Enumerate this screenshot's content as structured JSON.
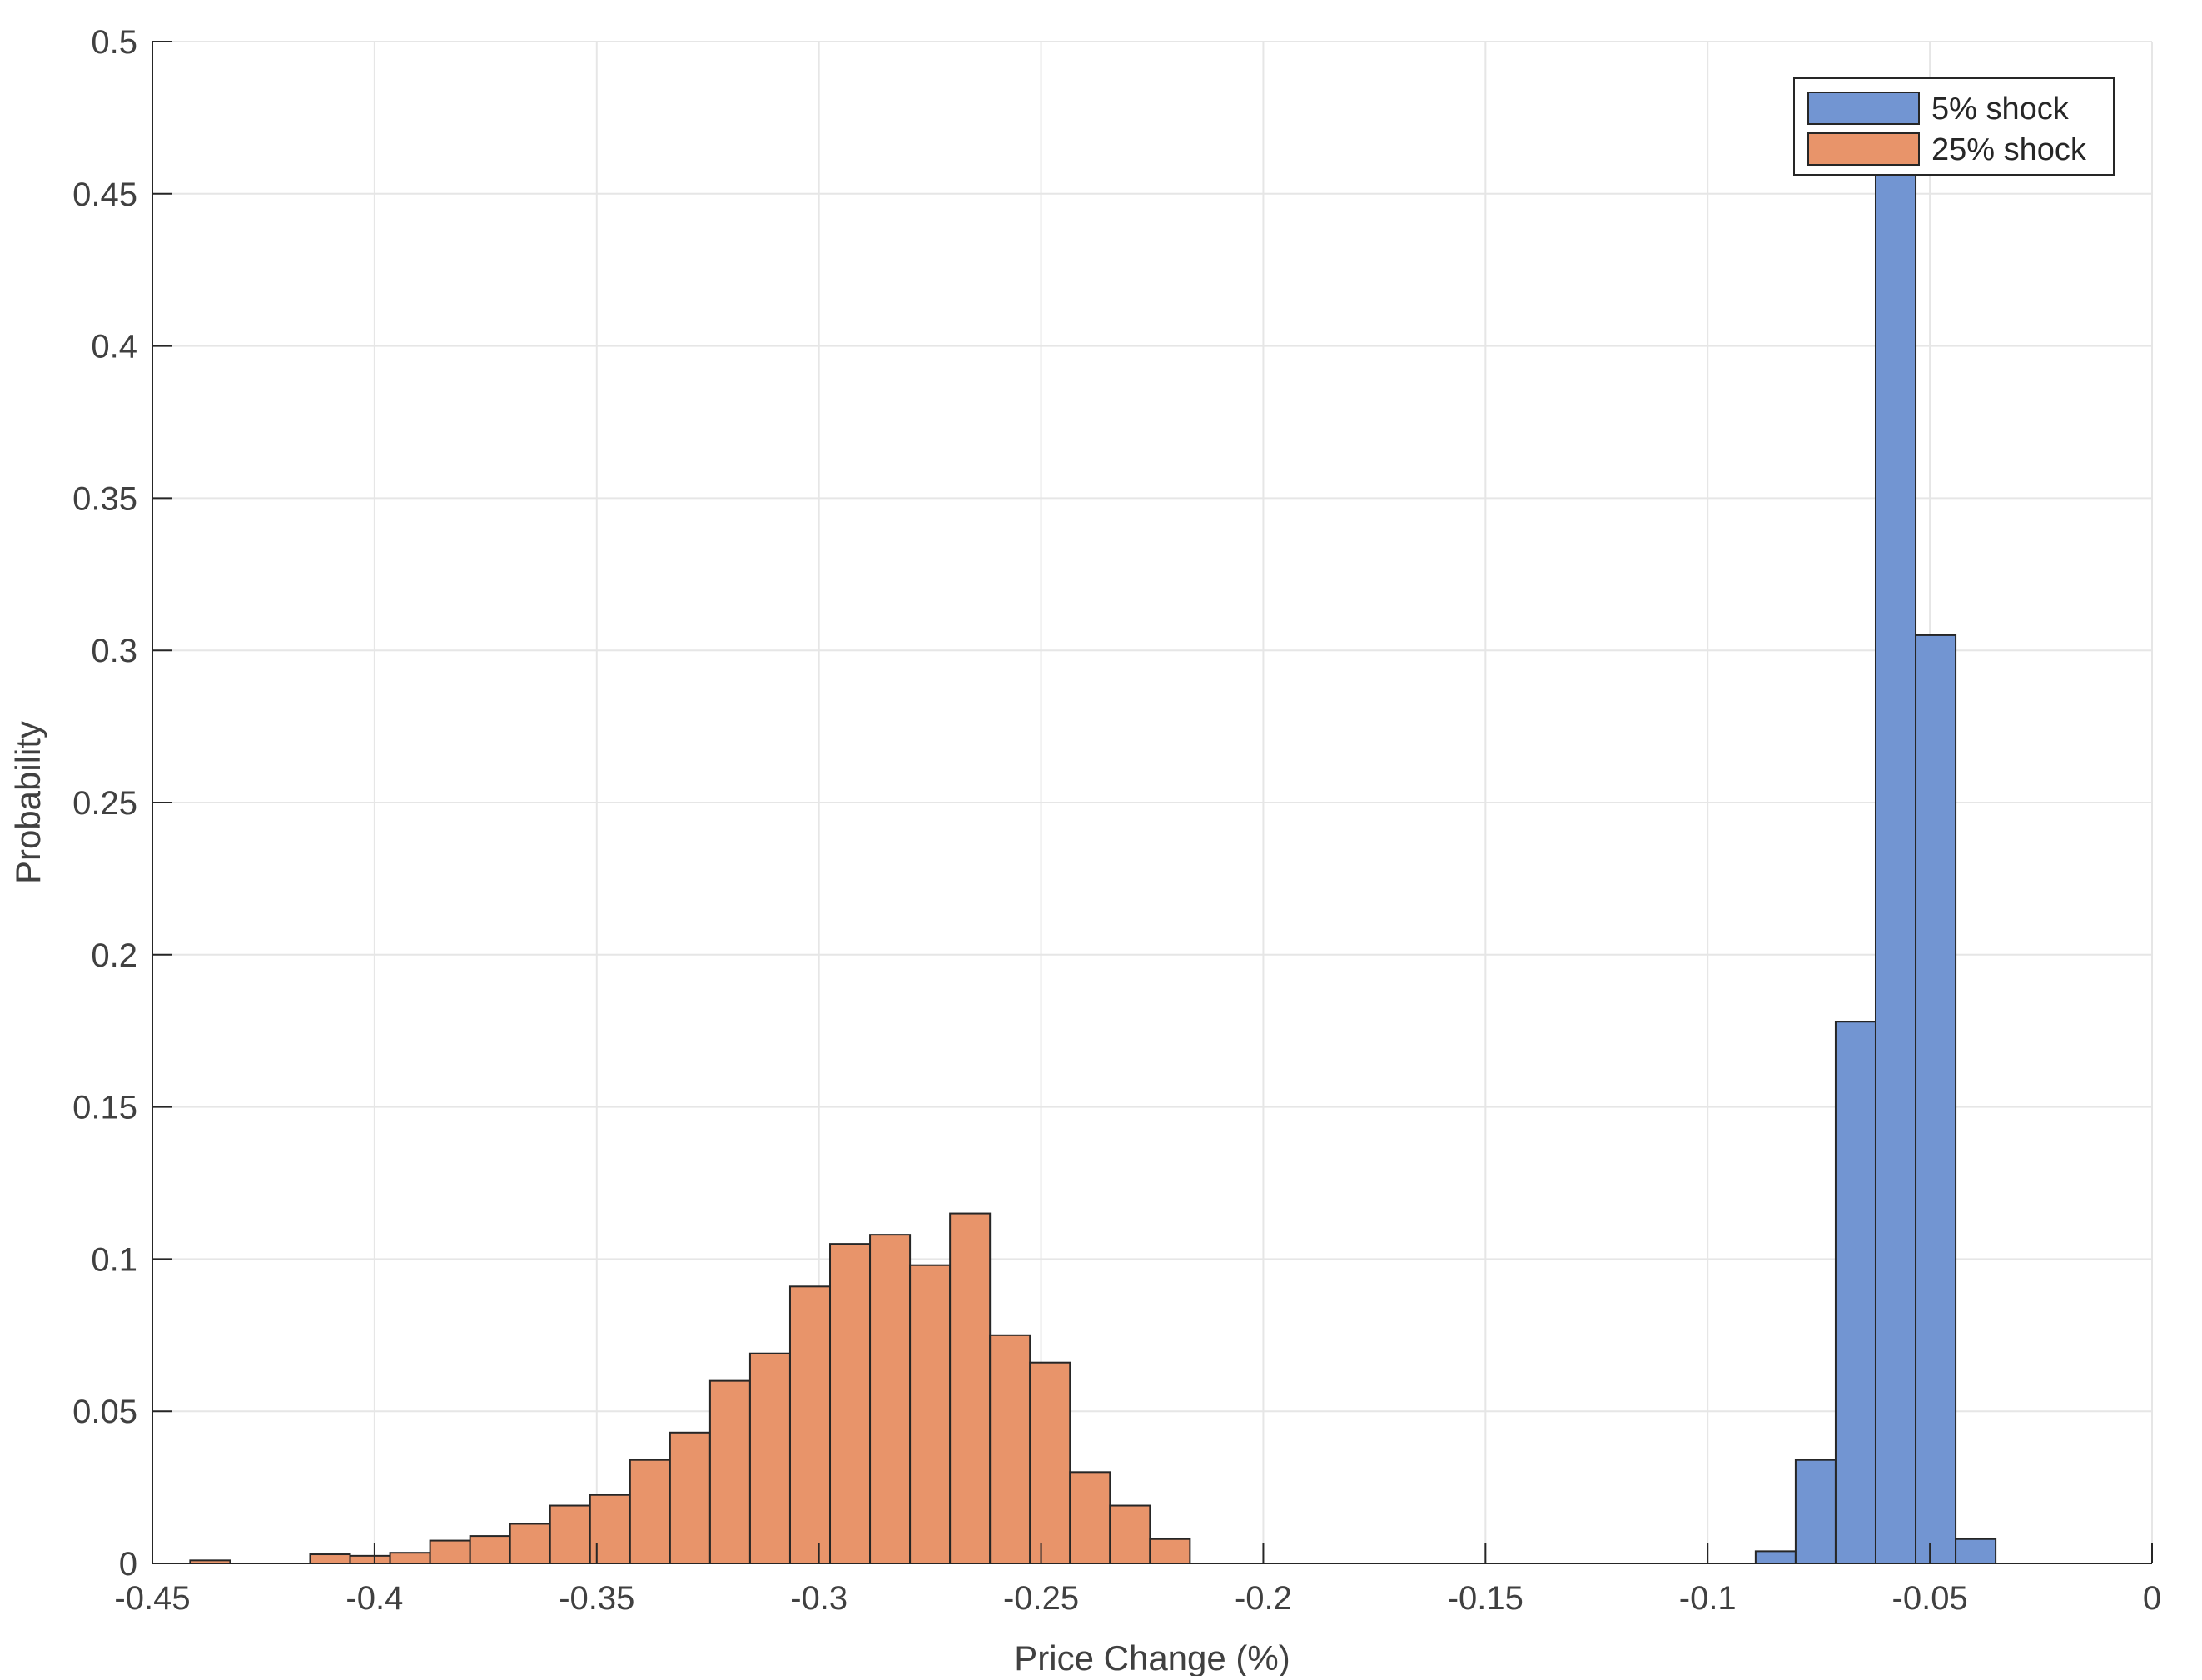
{
  "chart_data": {
    "type": "bar",
    "title": "",
    "xlabel": "Price Change (%)",
    "ylabel": "Probability",
    "xlim": [
      -0.45,
      0
    ],
    "ylim": [
      0,
      0.5
    ],
    "grid": true,
    "legend_position": "top-right",
    "x_ticks": [
      -0.45,
      -0.4,
      -0.35,
      -0.3,
      -0.25,
      -0.2,
      -0.15,
      -0.1,
      -0.05,
      0
    ],
    "x_tick_labels": [
      "-0.45",
      "-0.4",
      "-0.35",
      "-0.3",
      "-0.25",
      "-0.2",
      "-0.15",
      "-0.1",
      "-0.05",
      "0"
    ],
    "y_ticks": [
      0,
      0.05,
      0.1,
      0.15,
      0.2,
      0.25,
      0.3,
      0.35,
      0.4,
      0.45,
      0.5
    ],
    "y_tick_labels": [
      "0",
      "0.05",
      "0.1",
      "0.15",
      "0.2",
      "0.25",
      "0.3",
      "0.35",
      "0.4",
      "0.45",
      "0.5"
    ],
    "series": [
      {
        "name": "5% shock",
        "color": "#7295d2",
        "bin_edges": [
          -0.0892,
          -0.0802,
          -0.0712,
          -0.0622,
          -0.0532,
          -0.0442,
          -0.0352
        ],
        "values": [
          0.004,
          0.034,
          0.178,
          0.475,
          0.305,
          0.008
        ]
      },
      {
        "name": "25% shock",
        "color": "#e8946a",
        "bin_edges": [
          -0.4415,
          -0.4325,
          -0.4235,
          -0.4145,
          -0.4055,
          -0.3965,
          -0.3875,
          -0.3785,
          -0.3695,
          -0.3605,
          -0.3515,
          -0.3425,
          -0.3335,
          -0.3245,
          -0.3155,
          -0.3065,
          -0.2975,
          -0.2885,
          -0.2795,
          -0.2705,
          -0.2615,
          -0.2525,
          -0.2435,
          -0.2345,
          -0.2255,
          -0.2165
        ],
        "values": [
          0.001,
          0.0,
          0.0,
          0.003,
          0.0025,
          0.0035,
          0.0075,
          0.009,
          0.013,
          0.019,
          0.0225,
          0.034,
          0.043,
          0.06,
          0.069,
          0.091,
          0.105,
          0.108,
          0.098,
          0.115,
          0.075,
          0.066,
          0.03,
          0.019,
          0.008
        ]
      }
    ]
  },
  "colors": {
    "axis": "#262626",
    "grid": "#e6e6e6",
    "bar_edge": "#262626"
  }
}
